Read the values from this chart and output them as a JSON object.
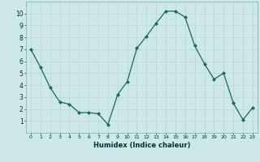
{
  "x": [
    0,
    1,
    2,
    3,
    4,
    5,
    6,
    7,
    8,
    9,
    10,
    11,
    12,
    13,
    14,
    15,
    16,
    17,
    18,
    19,
    20,
    21,
    22,
    23
  ],
  "y": [
    7.0,
    5.5,
    3.8,
    2.6,
    2.4,
    1.7,
    1.7,
    1.6,
    0.7,
    3.2,
    4.3,
    7.1,
    8.1,
    9.2,
    10.2,
    10.2,
    9.7,
    7.3,
    5.8,
    4.5,
    5.0,
    2.5,
    1.1,
    2.1
  ],
  "xlabel": "Humidex (Indice chaleur)",
  "ylim": [
    0,
    11
  ],
  "xlim": [
    -0.5,
    23.5
  ],
  "yticks": [
    1,
    2,
    3,
    4,
    5,
    6,
    7,
    8,
    9,
    10
  ],
  "xticks": [
    0,
    1,
    2,
    3,
    4,
    5,
    6,
    7,
    8,
    9,
    10,
    11,
    12,
    13,
    14,
    15,
    16,
    17,
    18,
    19,
    20,
    21,
    22,
    23
  ],
  "line_color": "#1a6b5a",
  "marker_color": "#1a6b5a",
  "bg_color": "#cce8e8",
  "grid_color": "#b8d4d4",
  "xlabel_color": "#003333"
}
